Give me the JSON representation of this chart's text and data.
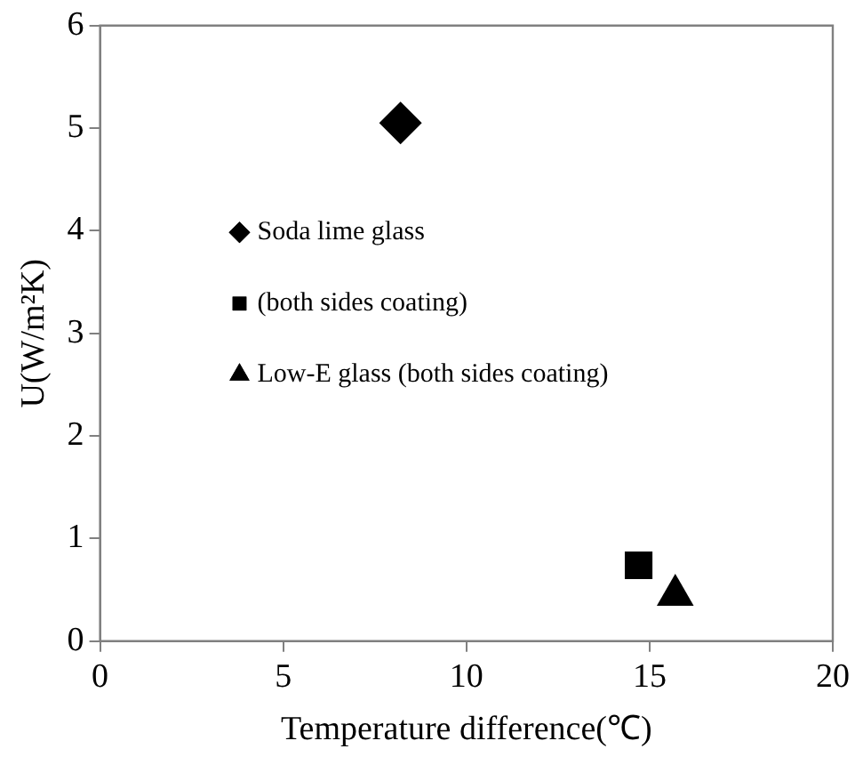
{
  "chart_data": {
    "type": "scatter",
    "xlabel": "Temperature difference(℃)",
    "ylabel": "U(W/m²K)",
    "xlim": [
      0,
      20
    ],
    "xticks": [
      0,
      5,
      10,
      15,
      20
    ],
    "ylim": [
      0,
      6
    ],
    "yticks": [
      0,
      1,
      2,
      3,
      4,
      5,
      6
    ],
    "grid": false,
    "legend": "left",
    "series": [
      {
        "name": "Soda lime glass",
        "color": "#000000",
        "marker": "diamond",
        "x": [
          8.2
        ],
        "values": [
          5.05
        ]
      },
      {
        "name": "(both sides coating)",
        "color": "#000000",
        "marker": "square",
        "x": [
          14.7
        ],
        "values": [
          0.74
        ]
      },
      {
        "name": "Low-E glass (both sides coating)",
        "color": "#000000",
        "marker": "triangle",
        "x": [
          15.7
        ],
        "values": [
          0.45
        ]
      }
    ]
  }
}
